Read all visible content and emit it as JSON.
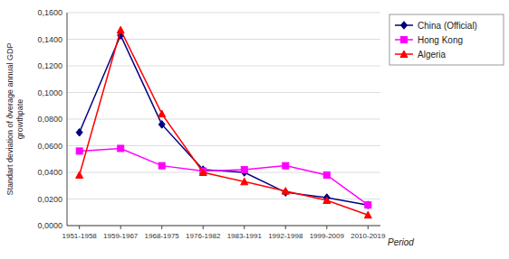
{
  "chart_data": {
    "type": "line",
    "ylabel": "Standart deviation of ðverage annual GDP\ngrowthрate",
    "annotation": "Period",
    "categories": [
      "1951-1958",
      "1959-1967",
      "1968-1975",
      "1976-1982",
      "1983-1991",
      "1992-1998",
      "1999-2009",
      "2010-2019"
    ],
    "series": [
      {
        "name": "China (Official)",
        "color": "#000080",
        "marker": "diamond",
        "values": [
          0.07,
          0.143,
          0.076,
          0.042,
          0.04,
          0.025,
          0.021,
          0.0155
        ]
      },
      {
        "name": "Hong Kong",
        "color": "#FF00FF",
        "marker": "square",
        "values": [
          0.056,
          0.058,
          0.045,
          0.041,
          0.042,
          0.045,
          0.038,
          0.0155
        ]
      },
      {
        "name": "Algeria",
        "color": "#FF0000",
        "marker": "triangle",
        "values": [
          0.038,
          0.147,
          0.084,
          0.04,
          0.033,
          0.026,
          0.019,
          0.008
        ]
      }
    ],
    "ylim": [
      0.0,
      0.16
    ],
    "yticks": [
      {
        "value": 0.0,
        "label": "0,0000"
      },
      {
        "value": 0.02,
        "label": "0,0200"
      },
      {
        "value": 0.04,
        "label": "0,0400"
      },
      {
        "value": 0.06,
        "label": "0,0600"
      },
      {
        "value": 0.08,
        "label": "0,0800"
      },
      {
        "value": 0.1,
        "label": "0,1000"
      },
      {
        "value": 0.12,
        "label": "0,1200"
      },
      {
        "value": 0.14,
        "label": "0,1400"
      },
      {
        "value": 0.16,
        "label": "0,1600"
      }
    ],
    "grid": true,
    "legend": "right"
  }
}
